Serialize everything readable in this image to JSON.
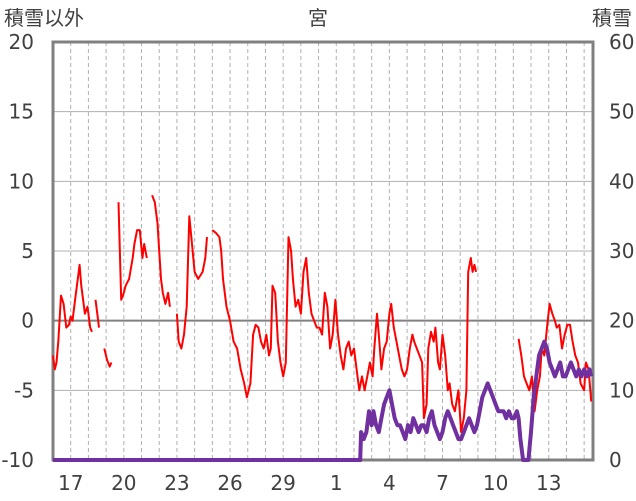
{
  "chart_data": {
    "type": "line",
    "title": "宮",
    "left_axis_label": "積雪以外",
    "right_axis_label": "積雪",
    "y_left": {
      "min": -10,
      "max": 20,
      "ticks": [
        "20",
        "15",
        "10",
        "5",
        "0",
        "-5",
        "-10"
      ]
    },
    "y_right": {
      "min": 0,
      "max": 60,
      "ticks": [
        "60",
        "50",
        "40",
        "30",
        "20",
        "10",
        "0"
      ]
    },
    "x_tick_labels": [
      "17",
      "20",
      "23",
      "26",
      "29",
      "1",
      "4",
      "7",
      "10",
      "13"
    ],
    "x_range_days": [
      0,
      30.5
    ],
    "colors": {
      "temperature": "#ff0000",
      "snow_depth": "#7030a0",
      "zero_line": "#808080",
      "frame": "#808080",
      "grid": "#b0b0b0"
    },
    "series": [
      {
        "axis": "left",
        "points": [
          [
            0.0,
            -2.5
          ],
          [
            0.1,
            -3.5
          ],
          [
            0.2,
            -3.0
          ],
          [
            0.3,
            -1.5
          ],
          [
            0.45,
            1.8
          ],
          [
            0.6,
            1.2
          ],
          [
            0.75,
            -0.5
          ],
          [
            0.9,
            -0.3
          ],
          [
            1.0,
            0.3
          ],
          [
            1.1,
            0.0
          ],
          [
            1.25,
            1.5
          ],
          [
            1.4,
            3.0
          ],
          [
            1.5,
            4.0
          ],
          [
            1.6,
            2.5
          ],
          [
            1.7,
            1.5
          ],
          [
            1.8,
            0.5
          ],
          [
            1.95,
            1.0
          ],
          [
            2.1,
            -0.5
          ],
          [
            2.2,
            -0.8
          ],
          null,
          [
            2.4,
            1.5
          ],
          [
            2.5,
            0.5
          ],
          [
            2.6,
            -0.5
          ],
          null,
          [
            2.9,
            -2.0
          ],
          [
            3.05,
            -2.8
          ],
          [
            3.2,
            -3.3
          ],
          [
            3.3,
            -3.0
          ],
          null,
          [
            3.7,
            8.5
          ],
          [
            3.85,
            1.5
          ],
          [
            4.0,
            2.0
          ],
          [
            4.1,
            2.5
          ],
          [
            4.3,
            3.0
          ],
          [
            4.5,
            4.5
          ],
          [
            4.6,
            5.5
          ],
          [
            4.75,
            6.5
          ],
          [
            4.9,
            6.5
          ],
          [
            5.05,
            4.5
          ],
          [
            5.15,
            5.5
          ],
          [
            5.3,
            4.5
          ],
          null,
          [
            5.6,
            9.0
          ],
          [
            5.75,
            8.5
          ],
          [
            5.9,
            7.0
          ],
          [
            6.0,
            5.0
          ],
          [
            6.1,
            3.0
          ],
          [
            6.2,
            2.0
          ],
          [
            6.35,
            1.2
          ],
          [
            6.5,
            2.0
          ],
          [
            6.6,
            1.0
          ],
          null,
          [
            7.0,
            0.5
          ],
          [
            7.1,
            -1.5
          ],
          [
            7.25,
            -2.0
          ],
          [
            7.4,
            -1.0
          ],
          [
            7.55,
            1.0
          ],
          [
            7.7,
            7.5
          ],
          [
            7.85,
            5.5
          ],
          [
            8.0,
            3.5
          ],
          [
            8.2,
            3.0
          ],
          [
            8.45,
            3.5
          ],
          [
            8.6,
            4.5
          ],
          [
            8.7,
            6.0
          ],
          null,
          [
            9.0,
            6.5
          ],
          [
            9.2,
            6.3
          ],
          [
            9.4,
            6.0
          ],
          [
            9.5,
            5.0
          ],
          [
            9.6,
            3.0
          ],
          [
            9.8,
            1.0
          ],
          [
            10.0,
            0.0
          ],
          [
            10.2,
            -1.5
          ],
          [
            10.4,
            -2.0
          ],
          [
            10.6,
            -3.5
          ],
          [
            10.8,
            -4.5
          ],
          [
            10.95,
            -5.5
          ],
          [
            11.15,
            -4.5
          ],
          [
            11.3,
            -1.0
          ],
          [
            11.45,
            -0.3
          ],
          [
            11.6,
            -0.5
          ],
          [
            11.75,
            -1.5
          ],
          [
            11.9,
            -2.0
          ],
          [
            12.05,
            -1.0
          ],
          [
            12.2,
            -2.5
          ],
          [
            12.3,
            -2.0
          ],
          [
            12.4,
            2.5
          ],
          [
            12.55,
            2.0
          ],
          [
            12.7,
            -1.5
          ],
          [
            12.85,
            -3.0
          ],
          [
            13.0,
            -4.0
          ],
          [
            13.15,
            -3.0
          ],
          [
            13.3,
            6.0
          ],
          [
            13.45,
            5.0
          ],
          [
            13.55,
            3.0
          ],
          [
            13.7,
            1.0
          ],
          [
            13.85,
            1.5
          ],
          [
            14.0,
            0.5
          ],
          [
            14.15,
            3.5
          ],
          [
            14.3,
            4.5
          ],
          [
            14.45,
            2.0
          ],
          [
            14.6,
            0.5
          ],
          [
            14.75,
            0.0
          ],
          [
            14.9,
            -0.5
          ],
          [
            15.05,
            -0.5
          ],
          [
            15.2,
            -1.0
          ],
          [
            15.35,
            2.0
          ],
          [
            15.5,
            1.0
          ],
          [
            15.65,
            -2.0
          ],
          [
            15.8,
            -1.0
          ],
          [
            15.95,
            1.5
          ],
          [
            16.1,
            -1.0
          ],
          [
            16.25,
            -2.5
          ],
          [
            16.4,
            -3.5
          ],
          [
            16.55,
            -2.0
          ],
          [
            16.7,
            -1.5
          ],
          [
            16.85,
            -2.5
          ],
          [
            17.0,
            -2.0
          ],
          [
            17.15,
            -3.5
          ],
          [
            17.3,
            -5.0
          ],
          [
            17.45,
            -4.0
          ],
          [
            17.6,
            -5.0
          ],
          [
            17.75,
            -4.0
          ],
          [
            17.9,
            -3.0
          ],
          [
            18.05,
            -4.0
          ],
          [
            18.15,
            -2.0
          ],
          [
            18.3,
            0.5
          ],
          [
            18.4,
            -1.0
          ],
          [
            18.55,
            -3.5
          ],
          [
            18.7,
            -2.0
          ],
          [
            18.85,
            -1.5
          ],
          [
            19.0,
            0.5
          ],
          [
            19.1,
            1.2
          ],
          [
            19.25,
            -0.5
          ],
          [
            19.4,
            -1.5
          ],
          [
            19.55,
            -2.5
          ],
          [
            19.7,
            -3.5
          ],
          [
            19.85,
            -4.0
          ],
          [
            20.0,
            -3.5
          ],
          [
            20.15,
            -2.0
          ],
          [
            20.3,
            -1.0
          ],
          [
            20.4,
            -1.5
          ],
          [
            20.55,
            -2.0
          ],
          [
            20.7,
            -2.5
          ],
          [
            20.85,
            -3.0
          ],
          [
            20.95,
            -7.0
          ],
          [
            21.1,
            -6.0
          ],
          [
            21.2,
            -2.0
          ],
          [
            21.35,
            -0.8
          ],
          [
            21.5,
            -1.5
          ],
          [
            21.6,
            -0.5
          ],
          [
            21.75,
            -3.0
          ],
          [
            21.85,
            -3.5
          ],
          [
            22.0,
            -1.0
          ],
          [
            22.15,
            -2.5
          ],
          [
            22.3,
            -5.0
          ],
          [
            22.4,
            -4.5
          ],
          [
            22.55,
            -6.0
          ],
          [
            22.7,
            -6.5
          ],
          [
            22.9,
            -5.0
          ],
          [
            23.05,
            -8.0
          ],
          [
            23.2,
            -7.0
          ],
          [
            23.35,
            -5.0
          ],
          [
            23.45,
            3.5
          ],
          [
            23.6,
            4.5
          ],
          [
            23.7,
            3.5
          ],
          [
            23.8,
            4.0
          ],
          [
            23.9,
            3.5
          ],
          null,
          [
            26.3,
            -1.3
          ],
          [
            26.45,
            -2.5
          ],
          [
            26.6,
            -4.0
          ],
          [
            26.75,
            -4.5
          ],
          [
            26.9,
            -5.0
          ],
          [
            27.05,
            -4.0
          ],
          [
            27.2,
            -6.5
          ],
          [
            27.35,
            -5.0
          ],
          [
            27.5,
            -4.0
          ],
          [
            27.6,
            -2.0
          ],
          [
            27.75,
            -2.5
          ],
          [
            27.9,
            -0.5
          ],
          [
            28.05,
            1.2
          ],
          [
            28.2,
            0.5
          ],
          [
            28.35,
            0.0
          ],
          [
            28.45,
            -0.5
          ],
          [
            28.6,
            -0.3
          ],
          [
            28.75,
            -2.0
          ],
          [
            28.9,
            -1.0
          ],
          [
            29.05,
            -0.3
          ],
          [
            29.2,
            -0.3
          ],
          [
            29.35,
            -1.5
          ],
          [
            29.5,
            -2.5
          ],
          [
            29.65,
            -3.0
          ],
          [
            29.8,
            -4.5
          ],
          [
            30.0,
            -5.0
          ],
          [
            30.1,
            -3.0
          ],
          [
            30.25,
            -3.5
          ],
          [
            30.4,
            -5.8
          ]
        ]
      },
      {
        "axis": "right",
        "points": [
          [
            0.0,
            0
          ],
          [
            17.2,
            0
          ],
          [
            17.35,
            0
          ],
          [
            17.4,
            4
          ],
          [
            17.55,
            3
          ],
          [
            17.7,
            4
          ],
          [
            17.85,
            7
          ],
          [
            18.0,
            5
          ],
          [
            18.1,
            7
          ],
          [
            18.25,
            5
          ],
          [
            18.4,
            4
          ],
          [
            18.55,
            6
          ],
          [
            18.7,
            8
          ],
          [
            18.85,
            9
          ],
          [
            19.0,
            10
          ],
          [
            19.15,
            8
          ],
          [
            19.3,
            6
          ],
          [
            19.45,
            5
          ],
          [
            19.6,
            5
          ],
          [
            19.75,
            4
          ],
          [
            19.9,
            3
          ],
          [
            20.05,
            5
          ],
          [
            20.2,
            4
          ],
          [
            20.35,
            6
          ],
          [
            20.5,
            5
          ],
          [
            20.65,
            4
          ],
          [
            20.8,
            5
          ],
          [
            20.95,
            5
          ],
          [
            21.1,
            4
          ],
          [
            21.25,
            6
          ],
          [
            21.4,
            7
          ],
          [
            21.55,
            5
          ],
          [
            21.7,
            4
          ],
          [
            21.85,
            3
          ],
          [
            22.0,
            4
          ],
          [
            22.15,
            6
          ],
          [
            22.3,
            7
          ],
          [
            22.45,
            6
          ],
          [
            22.6,
            5
          ],
          [
            22.75,
            4
          ],
          [
            22.9,
            3
          ],
          [
            23.05,
            3
          ],
          [
            23.2,
            4
          ],
          [
            23.35,
            5
          ],
          [
            23.5,
            6
          ],
          [
            23.65,
            5
          ],
          [
            23.8,
            4
          ],
          [
            23.95,
            5
          ],
          [
            24.1,
            7
          ],
          [
            24.25,
            9
          ],
          [
            24.4,
            10
          ],
          [
            24.55,
            11
          ],
          [
            24.7,
            10
          ],
          [
            24.85,
            9
          ],
          [
            25.0,
            8
          ],
          [
            25.15,
            7
          ],
          [
            25.3,
            7
          ],
          [
            25.45,
            7
          ],
          [
            25.6,
            6
          ],
          [
            25.75,
            7
          ],
          [
            25.9,
            6
          ],
          [
            26.05,
            6
          ],
          [
            26.2,
            7
          ],
          [
            26.3,
            6
          ],
          [
            26.4,
            3
          ],
          [
            26.55,
            0
          ],
          [
            26.7,
            0
          ],
          [
            26.85,
            0
          ],
          [
            27.0,
            4
          ],
          [
            27.15,
            9
          ],
          [
            27.3,
            12
          ],
          [
            27.45,
            15
          ],
          [
            27.6,
            16
          ],
          [
            27.75,
            17
          ],
          [
            27.9,
            16
          ],
          [
            28.05,
            14
          ],
          [
            28.2,
            13
          ],
          [
            28.35,
            12
          ],
          [
            28.5,
            13
          ],
          [
            28.65,
            14
          ],
          [
            28.8,
            12
          ],
          [
            28.95,
            12
          ],
          [
            29.1,
            13
          ],
          [
            29.25,
            14
          ],
          [
            29.4,
            13
          ],
          [
            29.55,
            12
          ],
          [
            29.7,
            13
          ],
          [
            29.85,
            12
          ],
          [
            30.0,
            13
          ],
          [
            30.15,
            12
          ],
          [
            30.3,
            13
          ],
          [
            30.4,
            12
          ]
        ]
      }
    ]
  }
}
